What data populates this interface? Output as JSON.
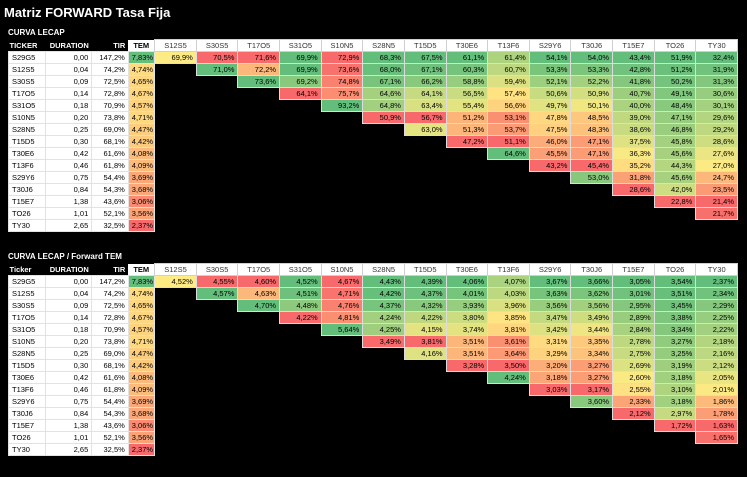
{
  "title": "Matriz FORWARD Tasa Fija",
  "sections": [
    {
      "label": "CURVA LECAP",
      "headers": {
        "ticker": "TICKER",
        "duration": "DURATION",
        "tir": "TIR",
        "tem": "TEM"
      },
      "columns": [
        "S12S5",
        "S30S5",
        "T17O5",
        "S31O5",
        "S10N5",
        "S28N5",
        "T15D5",
        "T30E6",
        "T13F6",
        "S29Y6",
        "T30J6",
        "T15E7",
        "TO26",
        "TY30"
      ],
      "rows": [
        {
          "ticker": "S29G5",
          "duration": "0,00",
          "tir": "147,2%",
          "tem": "7,83%",
          "values": [
            "69,9%",
            "70,5%",
            "71,6%",
            "69,9%",
            "72,9%",
            "68,3%",
            "67,5%",
            "61,1%",
            "61,4%",
            "54,1%",
            "54,0%",
            "43,4%",
            "51,9%",
            "32,4%"
          ]
        },
        {
          "ticker": "S12S5",
          "duration": "0,04",
          "tir": "74,2%",
          "tem": "4,74%",
          "values": [
            "",
            "71,0%",
            "72,2%",
            "69,9%",
            "73,6%",
            "68,0%",
            "67,1%",
            "60,3%",
            "60,7%",
            "53,3%",
            "53,3%",
            "42,8%",
            "51,2%",
            "31,9%"
          ]
        },
        {
          "ticker": "S30S5",
          "duration": "0,09",
          "tir": "72,5%",
          "tem": "4,65%",
          "values": [
            "",
            "",
            "73,6%",
            "69,2%",
            "74,8%",
            "67,1%",
            "66,2%",
            "58,8%",
            "59,4%",
            "52,1%",
            "52,2%",
            "41,8%",
            "50,2%",
            "31,3%"
          ]
        },
        {
          "ticker": "T17O5",
          "duration": "0,14",
          "tir": "72,8%",
          "tem": "4,67%",
          "values": [
            "",
            "",
            "",
            "64,1%",
            "75,7%",
            "64,6%",
            "64,1%",
            "56,5%",
            "57,4%",
            "50,6%",
            "50,9%",
            "40,7%",
            "49,1%",
            "30,6%"
          ]
        },
        {
          "ticker": "S31O5",
          "duration": "0,18",
          "tir": "70,9%",
          "tem": "4,57%",
          "values": [
            "",
            "",
            "",
            "",
            "93,2%",
            "64,8%",
            "63,4%",
            "55,4%",
            "56,6%",
            "49,7%",
            "50,1%",
            "40,0%",
            "48,4%",
            "30,1%"
          ]
        },
        {
          "ticker": "S10N5",
          "duration": "0,20",
          "tir": "73,8%",
          "tem": "4,71%",
          "values": [
            "",
            "",
            "",
            "",
            "",
            "50,9%",
            "56,7%",
            "51,2%",
            "53,1%",
            "47,8%",
            "48,5%",
            "39,0%",
            "47,1%",
            "29,6%"
          ]
        },
        {
          "ticker": "S28N5",
          "duration": "0,25",
          "tir": "69,0%",
          "tem": "4,47%",
          "values": [
            "",
            "",
            "",
            "",
            "",
            "",
            "63,0%",
            "51,3%",
            "53,7%",
            "47,5%",
            "48,3%",
            "38,6%",
            "46,8%",
            "29,2%"
          ]
        },
        {
          "ticker": "T15D5",
          "duration": "0,30",
          "tir": "68,1%",
          "tem": "4,42%",
          "values": [
            "",
            "",
            "",
            "",
            "",
            "",
            "",
            "47,2%",
            "51,1%",
            "46,0%",
            "47,1%",
            "37,5%",
            "45,8%",
            "28,6%"
          ]
        },
        {
          "ticker": "T30E6",
          "duration": "0,42",
          "tir": "61,6%",
          "tem": "4,08%",
          "values": [
            "",
            "",
            "",
            "",
            "",
            "",
            "",
            "",
            "64,6%",
            "45,5%",
            "47,1%",
            "36,3%",
            "45,6%",
            "27,6%"
          ]
        },
        {
          "ticker": "T13F6",
          "duration": "0,46",
          "tir": "61,8%",
          "tem": "4,09%",
          "values": [
            "",
            "",
            "",
            "",
            "",
            "",
            "",
            "",
            "",
            "43,2%",
            "45,4%",
            "35,2%",
            "44,3%",
            "27,0%"
          ]
        },
        {
          "ticker": "S29Y6",
          "duration": "0,75",
          "tir": "54,4%",
          "tem": "3,69%",
          "values": [
            "",
            "",
            "",
            "",
            "",
            "",
            "",
            "",
            "",
            "",
            "53,0%",
            "31,8%",
            "45,6%",
            "24,7%"
          ]
        },
        {
          "ticker": "T30J6",
          "duration": "0,84",
          "tir": "54,3%",
          "tem": "3,68%",
          "values": [
            "",
            "",
            "",
            "",
            "",
            "",
            "",
            "",
            "",
            "",
            "",
            "28,6%",
            "42,0%",
            "23,5%"
          ]
        },
        {
          "ticker": "T15E7",
          "duration": "1,38",
          "tir": "43,6%",
          "tem": "3,06%",
          "values": [
            "",
            "",
            "",
            "",
            "",
            "",
            "",
            "",
            "",
            "",
            "",
            "",
            "22,8%",
            "21,4%"
          ]
        },
        {
          "ticker": "TO26",
          "duration": "1,01",
          "tir": "52,1%",
          "tem": "3,56%",
          "values": [
            "",
            "",
            "",
            "",
            "",
            "",
            "",
            "",
            "",
            "",
            "",
            "",
            "",
            "21,7%"
          ]
        },
        {
          "ticker": "TY30",
          "duration": "2,65",
          "tir": "32,5%",
          "tem": "2,37%",
          "values": [
            "",
            "",
            "",
            "",
            "",
            "",
            "",
            "",
            "",
            "",
            "",
            "",
            "",
            ""
          ]
        }
      ]
    },
    {
      "label": "CURVA LECAP  / Forward TEM",
      "headers": {
        "ticker": "Ticker",
        "duration": "DURATION",
        "tir": "TIR",
        "tem": "TEM"
      },
      "columns": [
        "S12S5",
        "S30S5",
        "T17O5",
        "S31O5",
        "S10N5",
        "S28N5",
        "T15D5",
        "T30E6",
        "T13F6",
        "S29Y6",
        "T30J6",
        "T15E7",
        "TO26",
        "TY30"
      ],
      "rows": [
        {
          "ticker": "S29G5",
          "duration": "0,00",
          "tir": "147,2%",
          "tem": "7,83%",
          "values": [
            "4,52%",
            "4,55%",
            "4,60%",
            "4,52%",
            "4,67%",
            "4,43%",
            "4,39%",
            "4,06%",
            "4,07%",
            "3,67%",
            "3,66%",
            "3,05%",
            "3,54%",
            "2,37%"
          ]
        },
        {
          "ticker": "S12S5",
          "duration": "0,04",
          "tir": "74,2%",
          "tem": "4,74%",
          "values": [
            "",
            "4,57%",
            "4,63%",
            "4,51%",
            "4,71%",
            "4,42%",
            "4,37%",
            "4,01%",
            "4,03%",
            "3,63%",
            "3,62%",
            "3,01%",
            "3,51%",
            "2,34%"
          ]
        },
        {
          "ticker": "S30S5",
          "duration": "0,09",
          "tir": "72,5%",
          "tem": "4,65%",
          "values": [
            "",
            "",
            "4,70%",
            "4,48%",
            "4,76%",
            "4,37%",
            "4,32%",
            "3,93%",
            "3,96%",
            "3,56%",
            "3,56%",
            "2,95%",
            "3,45%",
            "2,29%"
          ]
        },
        {
          "ticker": "T17O5",
          "duration": "0,14",
          "tir": "72,8%",
          "tem": "4,67%",
          "values": [
            "",
            "",
            "",
            "4,22%",
            "4,81%",
            "4,24%",
            "4,22%",
            "3,80%",
            "3,85%",
            "3,47%",
            "3,49%",
            "2,89%",
            "3,38%",
            "2,25%"
          ]
        },
        {
          "ticker": "S31O5",
          "duration": "0,18",
          "tir": "70,9%",
          "tem": "4,57%",
          "values": [
            "",
            "",
            "",
            "",
            "5,64%",
            "4,25%",
            "4,15%",
            "3,74%",
            "3,81%",
            "3,42%",
            "3,44%",
            "2,84%",
            "3,34%",
            "2,22%"
          ]
        },
        {
          "ticker": "S10N5",
          "duration": "0,20",
          "tir": "73,8%",
          "tem": "4,71%",
          "values": [
            "",
            "",
            "",
            "",
            "",
            "3,49%",
            "3,81%",
            "3,51%",
            "3,61%",
            "3,31%",
            "3,35%",
            "2,78%",
            "3,27%",
            "2,18%"
          ]
        },
        {
          "ticker": "S28N5",
          "duration": "0,25",
          "tir": "69,0%",
          "tem": "4,47%",
          "values": [
            "",
            "",
            "",
            "",
            "",
            "",
            "4,16%",
            "3,51%",
            "3,64%",
            "3,29%",
            "3,34%",
            "2,75%",
            "3,25%",
            "2,16%"
          ]
        },
        {
          "ticker": "T15D5",
          "duration": "0,30",
          "tir": "68,1%",
          "tem": "4,42%",
          "values": [
            "",
            "",
            "",
            "",
            "",
            "",
            "",
            "3,28%",
            "3,50%",
            "3,20%",
            "3,27%",
            "2,69%",
            "3,19%",
            "2,12%"
          ]
        },
        {
          "ticker": "T30E6",
          "duration": "0,42",
          "tir": "61,6%",
          "tem": "4,08%",
          "values": [
            "",
            "",
            "",
            "",
            "",
            "",
            "",
            "",
            "4,24%",
            "3,18%",
            "3,27%",
            "2,60%",
            "3,18%",
            "2,05%"
          ]
        },
        {
          "ticker": "T13F6",
          "duration": "0,46",
          "tir": "61,8%",
          "tem": "4,09%",
          "values": [
            "",
            "",
            "",
            "",
            "",
            "",
            "",
            "",
            "",
            "3,03%",
            "3,17%",
            "2,55%",
            "3,10%",
            "2,01%"
          ]
        },
        {
          "ticker": "S29Y6",
          "duration": "0,75",
          "tir": "54,4%",
          "tem": "3,69%",
          "values": [
            "",
            "",
            "",
            "",
            "",
            "",
            "",
            "",
            "",
            "",
            "3,60%",
            "2,33%",
            "3,18%",
            "1,86%"
          ]
        },
        {
          "ticker": "T30J6",
          "duration": "0,84",
          "tir": "54,3%",
          "tem": "3,68%",
          "values": [
            "",
            "",
            "",
            "",
            "",
            "",
            "",
            "",
            "",
            "",
            "",
            "2,12%",
            "2,97%",
            "1,78%"
          ]
        },
        {
          "ticker": "T15E7",
          "duration": "1,38",
          "tir": "43,6%",
          "tem": "3,06%",
          "values": [
            "",
            "",
            "",
            "",
            "",
            "",
            "",
            "",
            "",
            "",
            "",
            "",
            "1,72%",
            "1,63%"
          ]
        },
        {
          "ticker": "TO26",
          "duration": "1,01",
          "tir": "52,1%",
          "tem": "3,56%",
          "values": [
            "",
            "",
            "",
            "",
            "",
            "",
            "",
            "",
            "",
            "",
            "",
            "",
            "",
            "1,65%"
          ]
        },
        {
          "ticker": "TY30",
          "duration": "2,65",
          "tir": "32,5%",
          "tem": "2,37%",
          "values": [
            "",
            "",
            "",
            "",
            "",
            "",
            "",
            "",
            "",
            "",
            "",
            "",
            "",
            ""
          ]
        }
      ]
    }
  ],
  "heatmap_colors": {
    "low": "#f8696b",
    "mid": "#ffeb84",
    "high": "#63be7b"
  }
}
